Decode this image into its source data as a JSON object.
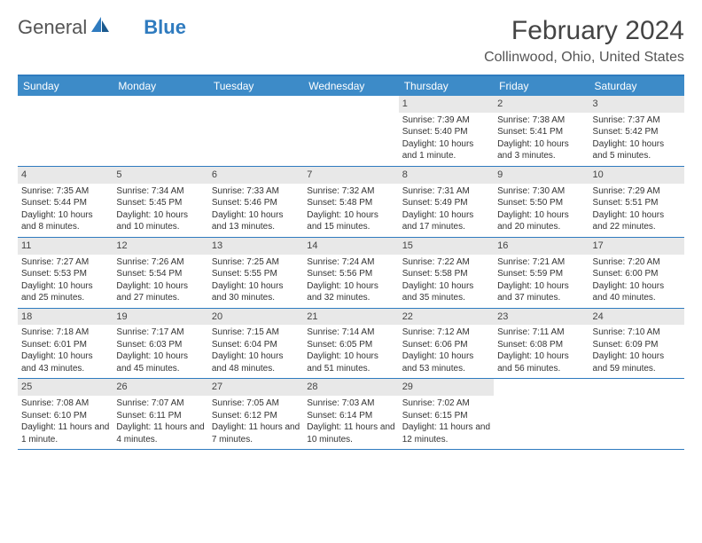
{
  "logo": {
    "text1": "General",
    "text2": "Blue"
  },
  "title": "February 2024",
  "location": "Collinwood, Ohio, United States",
  "colors": {
    "header_bar": "#3d8bc8",
    "border": "#2f7bbf",
    "daynum_bg": "#e8e8e8",
    "text": "#333333",
    "title_text": "#444444"
  },
  "daysOfWeek": [
    "Sunday",
    "Monday",
    "Tuesday",
    "Wednesday",
    "Thursday",
    "Friday",
    "Saturday"
  ],
  "weeks": [
    [
      {
        "empty": true
      },
      {
        "empty": true
      },
      {
        "empty": true
      },
      {
        "empty": true
      },
      {
        "num": "1",
        "sunrise": "Sunrise: 7:39 AM",
        "sunset": "Sunset: 5:40 PM",
        "daylight": "Daylight: 10 hours and 1 minute."
      },
      {
        "num": "2",
        "sunrise": "Sunrise: 7:38 AM",
        "sunset": "Sunset: 5:41 PM",
        "daylight": "Daylight: 10 hours and 3 minutes."
      },
      {
        "num": "3",
        "sunrise": "Sunrise: 7:37 AM",
        "sunset": "Sunset: 5:42 PM",
        "daylight": "Daylight: 10 hours and 5 minutes."
      }
    ],
    [
      {
        "num": "4",
        "sunrise": "Sunrise: 7:35 AM",
        "sunset": "Sunset: 5:44 PM",
        "daylight": "Daylight: 10 hours and 8 minutes."
      },
      {
        "num": "5",
        "sunrise": "Sunrise: 7:34 AM",
        "sunset": "Sunset: 5:45 PM",
        "daylight": "Daylight: 10 hours and 10 minutes."
      },
      {
        "num": "6",
        "sunrise": "Sunrise: 7:33 AM",
        "sunset": "Sunset: 5:46 PM",
        "daylight": "Daylight: 10 hours and 13 minutes."
      },
      {
        "num": "7",
        "sunrise": "Sunrise: 7:32 AM",
        "sunset": "Sunset: 5:48 PM",
        "daylight": "Daylight: 10 hours and 15 minutes."
      },
      {
        "num": "8",
        "sunrise": "Sunrise: 7:31 AM",
        "sunset": "Sunset: 5:49 PM",
        "daylight": "Daylight: 10 hours and 17 minutes."
      },
      {
        "num": "9",
        "sunrise": "Sunrise: 7:30 AM",
        "sunset": "Sunset: 5:50 PM",
        "daylight": "Daylight: 10 hours and 20 minutes."
      },
      {
        "num": "10",
        "sunrise": "Sunrise: 7:29 AM",
        "sunset": "Sunset: 5:51 PM",
        "daylight": "Daylight: 10 hours and 22 minutes."
      }
    ],
    [
      {
        "num": "11",
        "sunrise": "Sunrise: 7:27 AM",
        "sunset": "Sunset: 5:53 PM",
        "daylight": "Daylight: 10 hours and 25 minutes."
      },
      {
        "num": "12",
        "sunrise": "Sunrise: 7:26 AM",
        "sunset": "Sunset: 5:54 PM",
        "daylight": "Daylight: 10 hours and 27 minutes."
      },
      {
        "num": "13",
        "sunrise": "Sunrise: 7:25 AM",
        "sunset": "Sunset: 5:55 PM",
        "daylight": "Daylight: 10 hours and 30 minutes."
      },
      {
        "num": "14",
        "sunrise": "Sunrise: 7:24 AM",
        "sunset": "Sunset: 5:56 PM",
        "daylight": "Daylight: 10 hours and 32 minutes."
      },
      {
        "num": "15",
        "sunrise": "Sunrise: 7:22 AM",
        "sunset": "Sunset: 5:58 PM",
        "daylight": "Daylight: 10 hours and 35 minutes."
      },
      {
        "num": "16",
        "sunrise": "Sunrise: 7:21 AM",
        "sunset": "Sunset: 5:59 PM",
        "daylight": "Daylight: 10 hours and 37 minutes."
      },
      {
        "num": "17",
        "sunrise": "Sunrise: 7:20 AM",
        "sunset": "Sunset: 6:00 PM",
        "daylight": "Daylight: 10 hours and 40 minutes."
      }
    ],
    [
      {
        "num": "18",
        "sunrise": "Sunrise: 7:18 AM",
        "sunset": "Sunset: 6:01 PM",
        "daylight": "Daylight: 10 hours and 43 minutes."
      },
      {
        "num": "19",
        "sunrise": "Sunrise: 7:17 AM",
        "sunset": "Sunset: 6:03 PM",
        "daylight": "Daylight: 10 hours and 45 minutes."
      },
      {
        "num": "20",
        "sunrise": "Sunrise: 7:15 AM",
        "sunset": "Sunset: 6:04 PM",
        "daylight": "Daylight: 10 hours and 48 minutes."
      },
      {
        "num": "21",
        "sunrise": "Sunrise: 7:14 AM",
        "sunset": "Sunset: 6:05 PM",
        "daylight": "Daylight: 10 hours and 51 minutes."
      },
      {
        "num": "22",
        "sunrise": "Sunrise: 7:12 AM",
        "sunset": "Sunset: 6:06 PM",
        "daylight": "Daylight: 10 hours and 53 minutes."
      },
      {
        "num": "23",
        "sunrise": "Sunrise: 7:11 AM",
        "sunset": "Sunset: 6:08 PM",
        "daylight": "Daylight: 10 hours and 56 minutes."
      },
      {
        "num": "24",
        "sunrise": "Sunrise: 7:10 AM",
        "sunset": "Sunset: 6:09 PM",
        "daylight": "Daylight: 10 hours and 59 minutes."
      }
    ],
    [
      {
        "num": "25",
        "sunrise": "Sunrise: 7:08 AM",
        "sunset": "Sunset: 6:10 PM",
        "daylight": "Daylight: 11 hours and 1 minute."
      },
      {
        "num": "26",
        "sunrise": "Sunrise: 7:07 AM",
        "sunset": "Sunset: 6:11 PM",
        "daylight": "Daylight: 11 hours and 4 minutes."
      },
      {
        "num": "27",
        "sunrise": "Sunrise: 7:05 AM",
        "sunset": "Sunset: 6:12 PM",
        "daylight": "Daylight: 11 hours and 7 minutes."
      },
      {
        "num": "28",
        "sunrise": "Sunrise: 7:03 AM",
        "sunset": "Sunset: 6:14 PM",
        "daylight": "Daylight: 11 hours and 10 minutes."
      },
      {
        "num": "29",
        "sunrise": "Sunrise: 7:02 AM",
        "sunset": "Sunset: 6:15 PM",
        "daylight": "Daylight: 11 hours and 12 minutes."
      },
      {
        "empty": true
      },
      {
        "empty": true
      }
    ]
  ]
}
